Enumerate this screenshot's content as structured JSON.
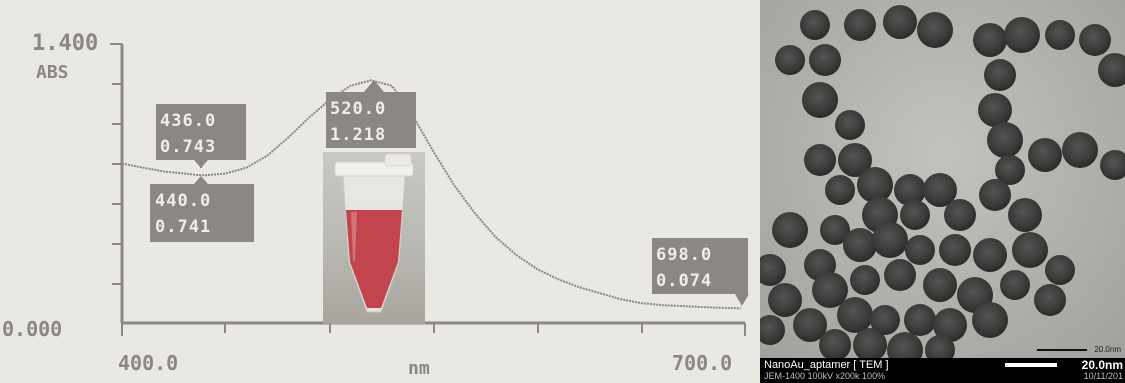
{
  "chart_data": {
    "type": "line",
    "title": "",
    "xlabel": "nm",
    "ylabel": "ABS",
    "xlim": [
      400.0,
      700.0
    ],
    "ylim": [
      0.0,
      1.4
    ],
    "x_tick_labels": [
      "400.0",
      "700.0"
    ],
    "y_tick_labels": [
      "0.000",
      "1.400"
    ],
    "grid": false,
    "line_color": "#8a8784",
    "series": [
      {
        "x": [
          400,
          410,
          420,
          430,
          436,
          440,
          450,
          460,
          470,
          480,
          490,
          500,
          510,
          520,
          530,
          540,
          550,
          560,
          570,
          580,
          590,
          600,
          610,
          620,
          630,
          640,
          650,
          660,
          670,
          680,
          690,
          698
        ],
        "y": [
          0.8,
          0.78,
          0.76,
          0.75,
          0.743,
          0.741,
          0.75,
          0.78,
          0.84,
          0.93,
          1.03,
          1.12,
          1.19,
          1.218,
          1.19,
          1.04,
          0.86,
          0.69,
          0.55,
          0.43,
          0.34,
          0.27,
          0.22,
          0.18,
          0.15,
          0.12,
          0.1,
          0.09,
          0.085,
          0.08,
          0.076,
          0.074
        ]
      }
    ],
    "annotations": [
      {
        "wavelength": "436.0",
        "absorbance": "0.743",
        "x": 436,
        "y": 0.743
      },
      {
        "wavelength": "440.0",
        "absorbance": "0.741",
        "x": 440,
        "y": 0.741
      },
      {
        "wavelength": "520.0",
        "absorbance": "1.218",
        "x": 520,
        "y": 1.218
      },
      {
        "wavelength": "698.0",
        "absorbance": "0.074",
        "x": 698,
        "y": 0.074
      }
    ]
  },
  "tube_photo": {
    "liquid_color": "#c2454d",
    "cap_color": "#f2f1ee"
  },
  "tem": {
    "title": "NanoAu_aptamer [ TEM ]",
    "info": "JEM-1400 100kV x200k 100%",
    "date": "10/11/201",
    "scale_label": "20.0nm",
    "small_scale_label": "20.0nm",
    "particle_color": "#3a3a38",
    "background_color": "#b0b0ac"
  }
}
